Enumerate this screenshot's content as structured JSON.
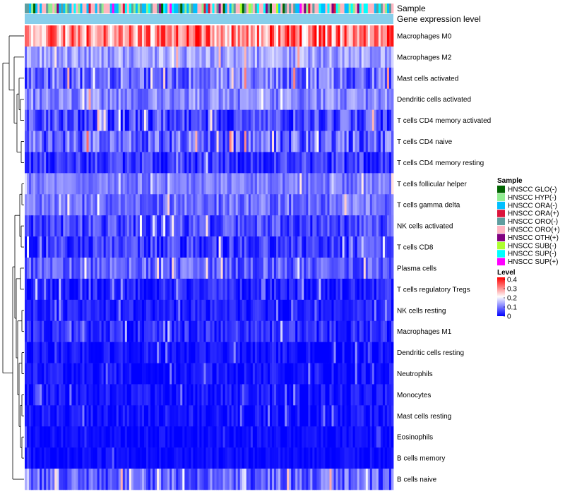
{
  "chart_data": {
    "type": "heatmap",
    "annotation_labels": [
      "Sample",
      "Gene expression level"
    ],
    "rows": [
      {
        "name": "Macrophages M0",
        "mean": 0.28,
        "spread": 0.1
      },
      {
        "name": "Macrophages M2",
        "mean": 0.12,
        "spread": 0.05
      },
      {
        "name": "Mast cells activated",
        "mean": 0.08,
        "spread": 0.07
      },
      {
        "name": "Dendritic cells activated",
        "mean": 0.1,
        "spread": 0.05
      },
      {
        "name": "T cells CD4 memory activated",
        "mean": 0.05,
        "spread": 0.06
      },
      {
        "name": "T cells CD4 naive",
        "mean": 0.07,
        "spread": 0.07
      },
      {
        "name": "T cells CD4 memory resting",
        "mean": 0.04,
        "spread": 0.05
      },
      {
        "name": "T cells follicular helper",
        "mean": 0.09,
        "spread": 0.04
      },
      {
        "name": "T cells gamma delta",
        "mean": 0.08,
        "spread": 0.05
      },
      {
        "name": "NK cells activated",
        "mean": 0.05,
        "spread": 0.05
      },
      {
        "name": "T cells CD8",
        "mean": 0.04,
        "spread": 0.05
      },
      {
        "name": "Plasma cells",
        "mean": 0.07,
        "spread": 0.05
      },
      {
        "name": "T cells regulatory  Tregs",
        "mean": 0.02,
        "spread": 0.04
      },
      {
        "name": "NK cells resting",
        "mean": 0.02,
        "spread": 0.03
      },
      {
        "name": "Macrophages M1",
        "mean": 0.03,
        "spread": 0.04
      },
      {
        "name": "Dendritic cells resting",
        "mean": 0.01,
        "spread": 0.03
      },
      {
        "name": "Neutrophils",
        "mean": 0.01,
        "spread": 0.03
      },
      {
        "name": "Monocytes",
        "mean": 0.01,
        "spread": 0.03
      },
      {
        "name": "Mast cells resting",
        "mean": 0.01,
        "spread": 0.03
      },
      {
        "name": "Eosinophils",
        "mean": 0.005,
        "spread": 0.02
      },
      {
        "name": "B cells memory",
        "mean": 0.005,
        "spread": 0.02
      },
      {
        "name": "B cells naive",
        "mean": 0.07,
        "spread": 0.06
      }
    ],
    "n_samples": 173,
    "sample_legend": {
      "title": "Sample",
      "entries": [
        {
          "label": "HNSCC GLO(-)",
          "color": "#006400"
        },
        {
          "label": "HNSCC HYP(-)",
          "color": "#90ee90"
        },
        {
          "label": "HNSCC ORA(-)",
          "color": "#00bfff"
        },
        {
          "label": "HNSCC ORA(+)",
          "color": "#dc143c"
        },
        {
          "label": "HNSCC ORO(-)",
          "color": "#5f9ea0"
        },
        {
          "label": "HNSCC ORO(+)",
          "color": "#ffb6c1"
        },
        {
          "label": "HNSCC OTH(+)",
          "color": "#800080"
        },
        {
          "label": "HNSCC SUB(-)",
          "color": "#adff2f"
        },
        {
          "label": "HNSCC SUP(-)",
          "color": "#00ffff"
        },
        {
          "label": "HNSCC SUP(+)",
          "color": "#ff00ff"
        }
      ]
    },
    "level_legend": {
      "title": "Level",
      "ticks": [
        "0.4",
        "0.3",
        "0.2",
        "0.1",
        "0"
      ],
      "range": [
        0,
        0.4
      ],
      "colors": [
        "#0000ff",
        "#ffffff",
        "#ff0000"
      ]
    },
    "expression_bar_color": "#87ceeb"
  }
}
